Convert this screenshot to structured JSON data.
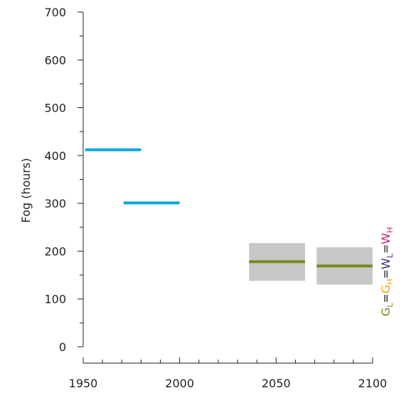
{
  "chart_data": {
    "type": "bar",
    "ylabel": "Fog (hours)",
    "xlabel": "",
    "xlim": [
      1950,
      2100
    ],
    "ylim": [
      0,
      700
    ],
    "x_ticks": [
      1950,
      2000,
      2050,
      2100
    ],
    "y_ticks": [
      0,
      100,
      200,
      300,
      400,
      500,
      600,
      700
    ],
    "x_minor_step": 10,
    "y_minor_step": 50,
    "observed": [
      {
        "x_start": 1951,
        "x_end": 1980,
        "value": 412
      },
      {
        "x_start": 1971,
        "x_end": 2000,
        "value": 301
      }
    ],
    "projections": [
      {
        "x_start": 2036,
        "x_end": 2065,
        "value": 178,
        "low": 138,
        "high": 217
      },
      {
        "x_start": 2071,
        "x_end": 2100,
        "value": 169,
        "low": 130,
        "high": 208
      }
    ],
    "scenario_label": [
      {
        "base": "G",
        "sub": "L",
        "color": "#7a8a1e"
      },
      {
        "base": "=",
        "sub": "",
        "color": "#231f20"
      },
      {
        "base": "G",
        "sub": "H",
        "color": "#f2a900"
      },
      {
        "base": "=",
        "sub": "",
        "color": "#231f20"
      },
      {
        "base": "W",
        "sub": "L",
        "color": "#4b2a7a"
      },
      {
        "base": "=",
        "sub": "",
        "color": "#231f20"
      },
      {
        "base": "W",
        "sub": "H",
        "color": "#c0207a"
      }
    ],
    "colors": {
      "observed": "#00a9e0",
      "projection": "#7a8a1e",
      "range": "#c8c8c8",
      "axis": "#231f20"
    },
    "grid": false
  }
}
